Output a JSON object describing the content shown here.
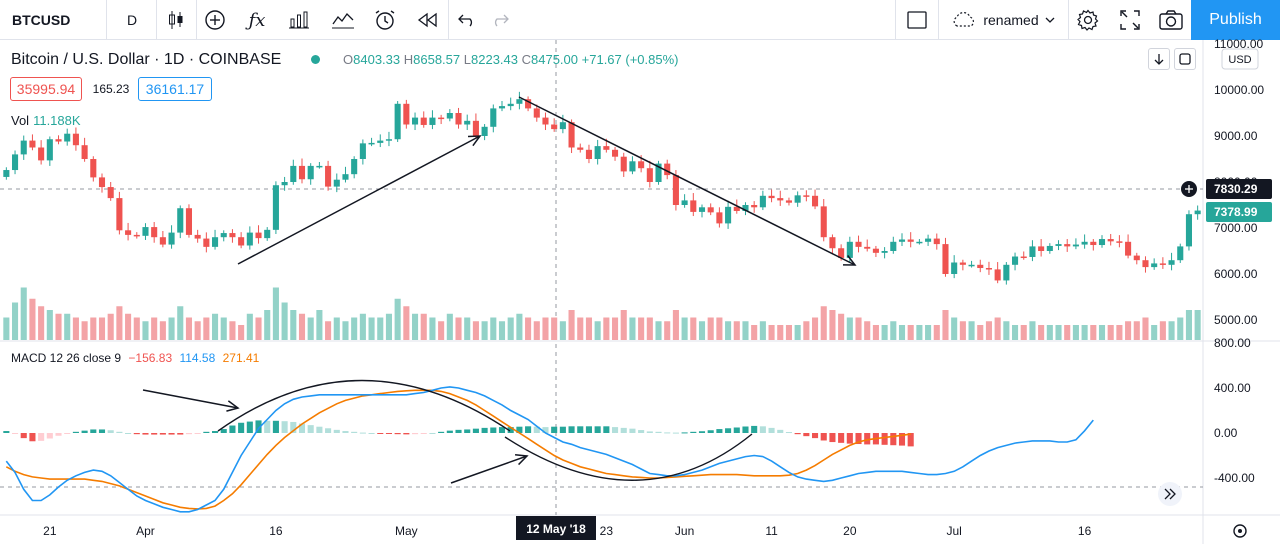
{
  "toolbar": {
    "symbol": "BTCUSD",
    "interval": "D",
    "layout_name": "renamed",
    "publish_label": "Publish"
  },
  "legend": {
    "title": "Bitcoin / U.S. Dollar · 1D · COINBASE",
    "open_label": "O",
    "open": "8403.33",
    "high_label": "H",
    "high": "8658.57",
    "low_label": "L",
    "low": "8223.43",
    "close_label": "C",
    "close": "8475.00",
    "change": "+71.67 (+0.85%)",
    "sell_price": "35995.94",
    "spread": "165.23",
    "buy_price": "36161.17",
    "volume_label": "Vol",
    "volume_value": "11.188K",
    "macd_label": "MACD 12 26 close 9",
    "macd_hist": "−156.83",
    "macd_line": "114.58",
    "macd_signal": "271.41"
  },
  "price_scale": {
    "currency": "USD",
    "crosshair_price": "7830.29",
    "last_price": "7378.99"
  },
  "time_axis": {
    "crosshair_date": "12 May '18"
  },
  "colors": {
    "up": "#26a69a",
    "down": "#ef5350",
    "vol_up": "#93d2c8",
    "vol_down": "#f3a3a6",
    "macd_line": "#2196f3",
    "signal_line": "#f57c00",
    "hist_pos_strong": "#26a69a",
    "hist_pos_weak": "#b2dfdb",
    "hist_neg_strong": "#ef5350",
    "hist_neg_weak": "#ffcdd2",
    "accent": "#2196f3"
  },
  "chart_data": [
    {
      "type": "candlestick",
      "title": "Bitcoin / U.S. Dollar · 1D · COINBASE",
      "y_axis": {
        "ticks": [
          "5000.00",
          "6000.00",
          "7000.00",
          "8000.00",
          "9000.00",
          "10000.00",
          "11000.00"
        ],
        "range": [
          4700,
          11000
        ],
        "currency": "USD"
      },
      "x_axis": {
        "ticks": [
          "21",
          "Apr",
          "16",
          "May",
          "23",
          "Jun",
          "11",
          "20",
          "Jul",
          "16"
        ]
      },
      "start_date": "2018-03-16",
      "closes": [
        8260,
        8600,
        8900,
        8750,
        8470,
        8930,
        8880,
        9050,
        8800,
        8500,
        8100,
        7890,
        7650,
        6950,
        6850,
        6830,
        7020,
        6800,
        6640,
        6900,
        7430,
        6850,
        6770,
        6590,
        6800,
        6890,
        6800,
        6620,
        6900,
        6780,
        6960,
        7930,
        8000,
        8350,
        8060,
        8350,
        8350,
        7900,
        8050,
        8170,
        8500,
        8840,
        8850,
        8900,
        8930,
        9700,
        9250,
        9400,
        9240,
        9400,
        9380,
        9500,
        9250,
        9330,
        9000,
        9200,
        9600,
        9650,
        9700,
        9800,
        9600,
        9400,
        9250,
        9150,
        9300,
        8750,
        8700,
        8500,
        8780,
        8700,
        8550,
        8230,
        8450,
        8300,
        8000,
        8400,
        8150,
        7500,
        7600,
        7350,
        7450,
        7340,
        7100,
        7460,
        7370,
        7500,
        7450,
        7700,
        7650,
        7600,
        7550,
        7710,
        7700,
        7470,
        6800,
        6560,
        6350,
        6700,
        6590,
        6550,
        6460,
        6500,
        6700,
        6750,
        6700,
        6700,
        6770,
        6650,
        6000,
        6250,
        6200,
        6200,
        6130,
        6100,
        5860,
        6200,
        6380,
        6370,
        6600,
        6500,
        6610,
        6650,
        6600,
        6640,
        6700,
        6630,
        6760,
        6710,
        6700,
        6400,
        6300,
        6150,
        6230,
        6200,
        6300,
        6600,
        7300,
        7379
      ],
      "series": [
        {
          "name": "Vol",
          "note": "volume bars scaled 0–1",
          "values": [
            0.3,
            0.5,
            0.7,
            0.55,
            0.45,
            0.4,
            0.35,
            0.35,
            0.3,
            0.25,
            0.3,
            0.3,
            0.35,
            0.45,
            0.35,
            0.3,
            0.25,
            0.3,
            0.25,
            0.3,
            0.45,
            0.3,
            0.25,
            0.3,
            0.35,
            0.3,
            0.25,
            0.2,
            0.35,
            0.3,
            0.4,
            0.7,
            0.5,
            0.4,
            0.35,
            0.3,
            0.4,
            0.25,
            0.3,
            0.25,
            0.3,
            0.35,
            0.3,
            0.3,
            0.35,
            0.55,
            0.45,
            0.35,
            0.35,
            0.3,
            0.25,
            0.35,
            0.3,
            0.3,
            0.25,
            0.25,
            0.3,
            0.25,
            0.3,
            0.35,
            0.3,
            0.25,
            0.3,
            0.3,
            0.25,
            0.4,
            0.3,
            0.3,
            0.25,
            0.3,
            0.3,
            0.4,
            0.3,
            0.3,
            0.3,
            0.25,
            0.25,
            0.4,
            0.3,
            0.3,
            0.25,
            0.3,
            0.3,
            0.25,
            0.25,
            0.25,
            0.2,
            0.25,
            0.2,
            0.2,
            0.2,
            0.2,
            0.25,
            0.3,
            0.45,
            0.4,
            0.35,
            0.3,
            0.3,
            0.25,
            0.2,
            0.2,
            0.25,
            0.2,
            0.2,
            0.2,
            0.2,
            0.2,
            0.4,
            0.3,
            0.25,
            0.25,
            0.2,
            0.25,
            0.3,
            0.25,
            0.2,
            0.2,
            0.25,
            0.2,
            0.2,
            0.2,
            0.2,
            0.2,
            0.2,
            0.2,
            0.2,
            0.2,
            0.2,
            0.25,
            0.25,
            0.3,
            0.2,
            0.25,
            0.25,
            0.3,
            0.4,
            0.4
          ]
        }
      ]
    },
    {
      "type": "line",
      "title": "MACD 12 26 close 9",
      "y_axis": {
        "ticks": [
          "-400.00",
          "0.00",
          "400.00",
          "800.00"
        ],
        "range": [
          -500,
          800
        ]
      },
      "series": [
        {
          "name": "MACD",
          "values": [
            -250,
            -350,
            -500,
            -600,
            -600,
            -550,
            -480,
            -420,
            -380,
            -350,
            -330,
            -340,
            -380,
            -440,
            -500,
            -560,
            -600,
            -630,
            -660,
            -680,
            -700,
            -700,
            -680,
            -640,
            -600,
            -500,
            -350,
            -200,
            -80,
            40,
            120,
            200,
            260,
            300,
            320,
            330,
            340,
            340,
            340,
            340,
            340,
            340,
            340,
            340,
            340,
            340,
            340,
            350,
            360,
            380,
            400,
            410,
            400,
            380,
            360,
            330,
            290,
            250,
            200,
            160,
            120,
            60,
            0,
            -40,
            -80,
            -100,
            -130,
            -150,
            -170,
            -190,
            -220,
            -250,
            -280,
            -320,
            -360,
            -370,
            -380,
            -380,
            -370,
            -350,
            -330,
            -300,
            -270,
            -250,
            -230,
            -210,
            -200,
            -210,
            -250,
            -300,
            -350,
            -390,
            -410,
            -420,
            -430,
            -420,
            -400,
            -380,
            -360,
            -350,
            -340,
            -340,
            -340,
            -340,
            -350,
            -360,
            -370,
            -370,
            -360,
            -340,
            -300,
            -250,
            -200,
            -160,
            -130,
            -110,
            -90,
            -80,
            -70,
            -70,
            -70,
            -80,
            -80,
            -60,
            20,
            114.58
          ]
        },
        {
          "name": "Signal",
          "values": [
            -300,
            -340,
            -370,
            -390,
            -400,
            -410,
            -410,
            -410,
            -410,
            -410,
            -420,
            -430,
            -450,
            -470,
            -500,
            -530,
            -560,
            -590,
            -620,
            -640,
            -660,
            -670,
            -675,
            -670,
            -650,
            -600,
            -540,
            -460,
            -370,
            -280,
            -190,
            -110,
            -40,
            20,
            80,
            130,
            180,
            220,
            260,
            290,
            310,
            330,
            340,
            350,
            360,
            370,
            375,
            380,
            380,
            380,
            370,
            350,
            320,
            290,
            250,
            200,
            150,
            100,
            50,
            0,
            -50,
            -100,
            -150,
            -200,
            -240,
            -270,
            -300,
            -320,
            -340,
            -360,
            -370,
            -380,
            -390,
            -395,
            -400,
            -400,
            -395,
            -390,
            -385,
            -380,
            -375,
            -370,
            -370,
            -370,
            -370,
            -375,
            -380,
            -380,
            -380,
            -380,
            -375,
            -360,
            -330,
            -290,
            -240,
            -190,
            -150,
            -110,
            -80,
            -60,
            -50,
            -40,
            -30,
            -20,
            -10
          ]
        },
        {
          "name": "Histogram",
          "note": "bars around zero line"
        }
      ]
    }
  ]
}
